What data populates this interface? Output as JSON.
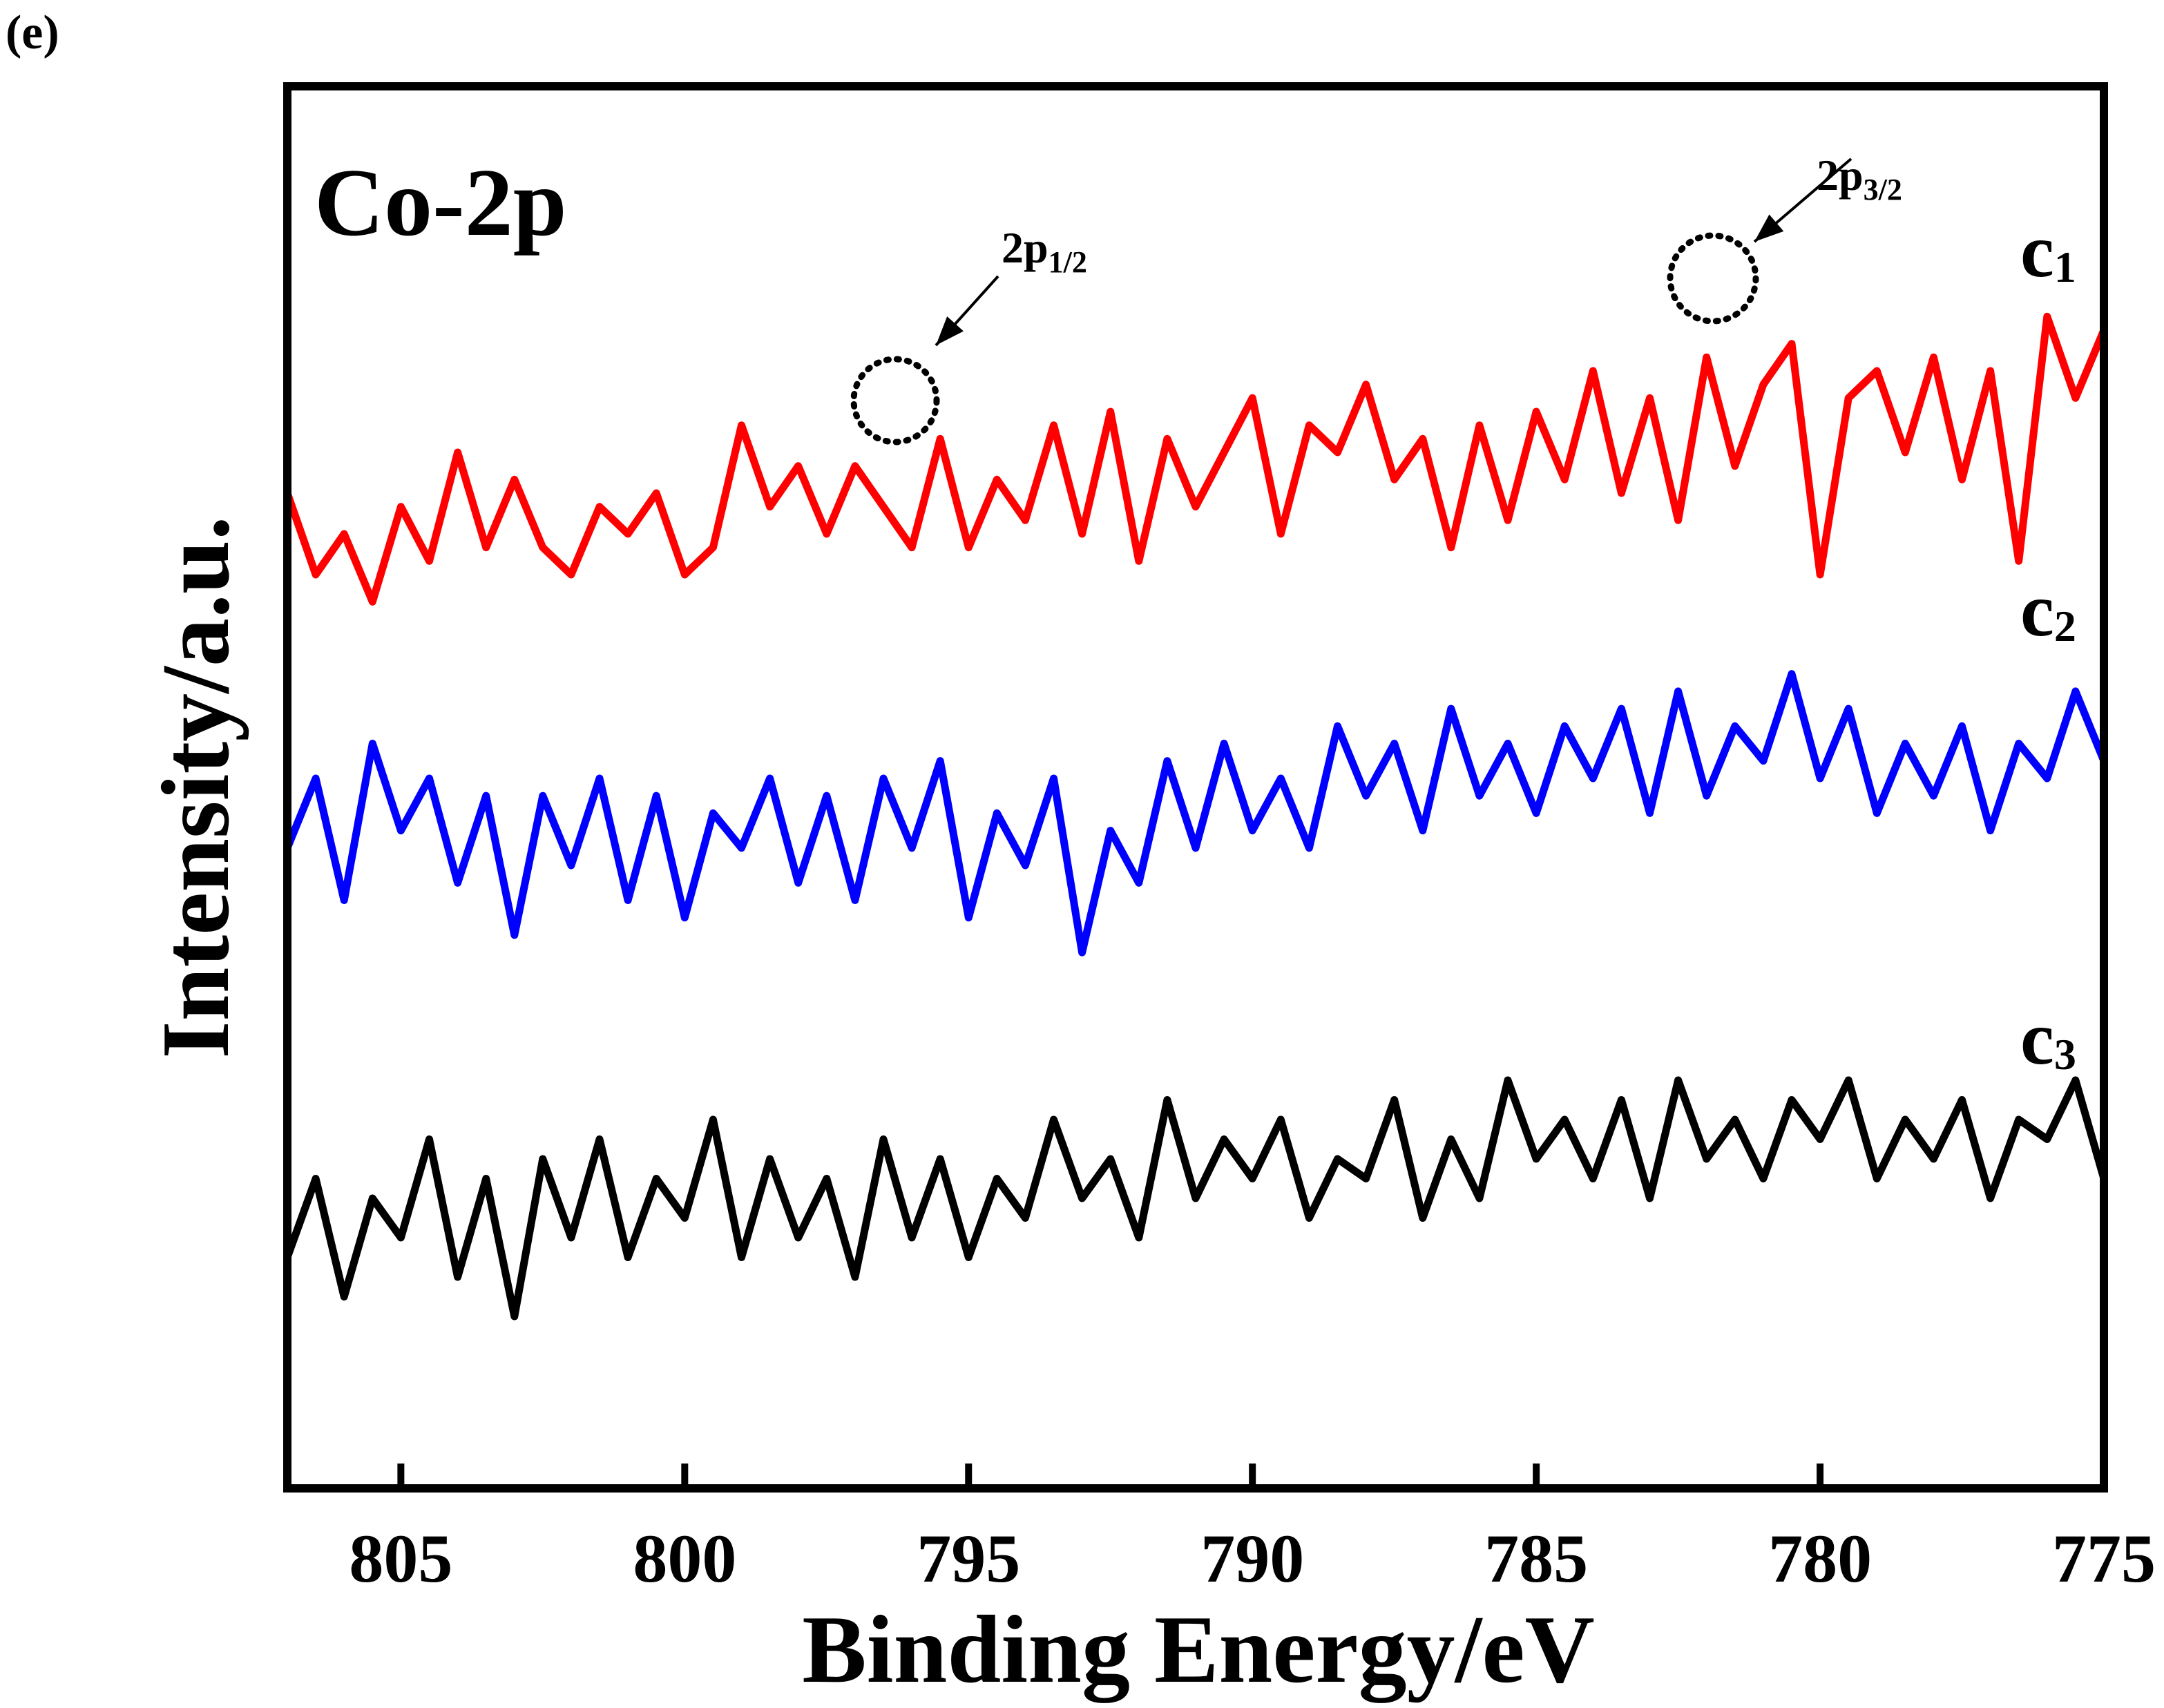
{
  "panel_label": "(e)",
  "chart_data": {
    "type": "line",
    "title": "Co-2p",
    "xlabel": "Binding Energy/eV",
    "ylabel": "Intensity/a.u.",
    "xlim": [
      807,
      775
    ],
    "ylim": [
      0,
      100
    ],
    "x_ticks": [
      805,
      800,
      795,
      790,
      785,
      780,
      775
    ],
    "x_tick_labels": [
      "805",
      "800",
      "795",
      "790",
      "785",
      "780",
      "775"
    ],
    "y_ticks_shown": false,
    "grid": false,
    "series": [
      {
        "name": "c1",
        "label_main": "c",
        "label_sub": "1",
        "color": "#ff0000",
        "x": [
          807.0,
          806.5,
          806.0,
          805.5,
          805.0,
          804.5,
          804.0,
          803.5,
          803.0,
          802.5,
          802.0,
          801.5,
          801.0,
          800.5,
          800.0,
          799.5,
          799.0,
          798.5,
          798.0,
          797.5,
          797.0,
          796.5,
          796.0,
          795.5,
          795.0,
          794.5,
          794.0,
          793.5,
          793.0,
          792.5,
          792.0,
          791.5,
          791.0,
          790.5,
          790.0,
          789.5,
          789.0,
          788.5,
          788.0,
          787.5,
          787.0,
          786.5,
          786.0,
          785.5,
          785.0,
          784.5,
          784.0,
          783.5,
          783.0,
          782.5,
          782.0,
          781.5,
          781.0,
          780.5,
          780.0,
          779.5,
          779.0,
          778.5,
          778.0,
          777.5,
          777.0,
          776.5,
          776.0,
          775.5,
          775.0
        ],
        "values": [
          67,
          61,
          64,
          59,
          66,
          62,
          70,
          63,
          68,
          63,
          61,
          66,
          64,
          67,
          61,
          63,
          72,
          66,
          69,
          64,
          69,
          66,
          63,
          71,
          63,
          68,
          65,
          72,
          64,
          73,
          62,
          71,
          66,
          70,
          74,
          64,
          72,
          70,
          75,
          68,
          71,
          63,
          72,
          65,
          73,
          68,
          76,
          67,
          74,
          65,
          77,
          69,
          75,
          78,
          61,
          74,
          76,
          70,
          77,
          68,
          76,
          62,
          80,
          74,
          79
        ]
      },
      {
        "name": "c2",
        "label_main": "c",
        "label_sub": "2",
        "color": "#0000ff",
        "x": [
          807.0,
          806.5,
          806.0,
          805.5,
          805.0,
          804.5,
          804.0,
          803.5,
          803.0,
          802.5,
          802.0,
          801.5,
          801.0,
          800.5,
          800.0,
          799.5,
          799.0,
          798.5,
          798.0,
          797.5,
          797.0,
          796.5,
          796.0,
          795.5,
          795.0,
          794.5,
          794.0,
          793.5,
          793.0,
          792.5,
          792.0,
          791.5,
          791.0,
          790.5,
          790.0,
          789.5,
          789.0,
          788.5,
          788.0,
          787.5,
          787.0,
          786.5,
          786.0,
          785.5,
          785.0,
          784.5,
          784.0,
          783.5,
          783.0,
          782.5,
          782.0,
          781.5,
          781.0,
          780.5,
          780.0,
          779.5,
          779.0,
          778.5,
          778.0,
          777.5,
          777.0,
          776.5,
          776.0,
          775.5,
          775.0
        ],
        "values": [
          43,
          47,
          40,
          49,
          44,
          47,
          41,
          46,
          38,
          46,
          42,
          47,
          40,
          46,
          39,
          45,
          43,
          47,
          41,
          46,
          40,
          47,
          43,
          48,
          39,
          45,
          42,
          47,
          37,
          44,
          41,
          48,
          43,
          49,
          44,
          47,
          43,
          50,
          46,
          49,
          44,
          51,
          46,
          49,
          45,
          50,
          47,
          51,
          45,
          52,
          46,
          50,
          48,
          53,
          47,
          51,
          45,
          49,
          46,
          50,
          44,
          49,
          47,
          52,
          48
        ]
      },
      {
        "name": "c3",
        "label_main": "c",
        "label_sub": "3",
        "color": "#000000",
        "x": [
          807.0,
          806.5,
          806.0,
          805.5,
          805.0,
          804.5,
          804.0,
          803.5,
          803.0,
          802.5,
          802.0,
          801.5,
          801.0,
          800.5,
          800.0,
          799.5,
          799.0,
          798.5,
          798.0,
          797.5,
          797.0,
          796.5,
          796.0,
          795.5,
          795.0,
          794.5,
          794.0,
          793.5,
          793.0,
          792.5,
          792.0,
          791.5,
          791.0,
          790.5,
          790.0,
          789.5,
          789.0,
          788.5,
          788.0,
          787.5,
          787.0,
          786.5,
          786.0,
          785.5,
          785.0,
          784.5,
          784.0,
          783.5,
          783.0,
          782.5,
          782.0,
          781.5,
          781.0,
          780.5,
          780.0,
          779.5,
          779.0,
          778.5,
          778.0,
          777.5,
          777.0,
          776.5,
          776.0,
          775.5,
          775.0
        ],
        "values": [
          12,
          16,
          10,
          15,
          13,
          18,
          11,
          16,
          9,
          17,
          13,
          18,
          12,
          16,
          14,
          19,
          12,
          17,
          13,
          16,
          11,
          18,
          13,
          17,
          12,
          16,
          14,
          19,
          15,
          17,
          13,
          20,
          15,
          18,
          16,
          19,
          14,
          17,
          16,
          20,
          14,
          18,
          15,
          21,
          17,
          19,
          16,
          20,
          15,
          21,
          17,
          19,
          16,
          20,
          18,
          21,
          16,
          19,
          17,
          20,
          15,
          19,
          18,
          21,
          16
        ]
      }
    ],
    "annotations": [
      {
        "main": "2p",
        "sub": "1/2",
        "x": 796.3,
        "y": 67
      },
      {
        "main": "2p",
        "sub": "3/2",
        "x": 781.8,
        "y": 78
      }
    ]
  }
}
